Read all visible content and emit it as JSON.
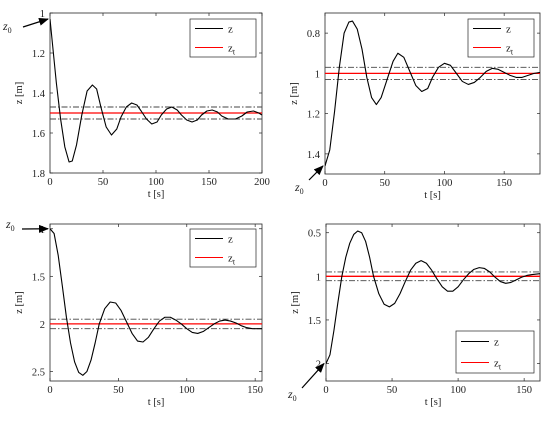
{
  "chart_data": [
    {
      "type": "line",
      "xlabel": "t [s]",
      "ylabel": "z [m]",
      "xlim": [
        0,
        200
      ],
      "ylim": [
        1.0,
        1.8
      ],
      "y_reversed": true,
      "xticks": [
        0,
        50,
        100,
        150,
        200
      ],
      "yticks": [
        1.0,
        1.2,
        1.4,
        1.6,
        1.8
      ],
      "ytick_labels": [
        "1",
        "1.2",
        "1.4",
        "1.6",
        "1.8"
      ],
      "legend": {
        "position": "top-right",
        "entries": [
          "z",
          "z_t"
        ]
      },
      "start_label": "z_0",
      "series": [
        {
          "name": "z",
          "color": "#000000",
          "x": [
            0,
            3,
            6,
            10,
            14,
            18,
            21,
            25,
            30,
            35,
            40,
            44,
            48,
            53,
            58,
            63,
            67,
            72,
            77,
            82,
            86,
            91,
            96,
            101,
            105,
            110,
            115,
            120,
            124,
            129,
            134,
            139,
            143,
            148,
            153,
            158,
            162,
            168,
            175,
            181,
            186,
            192,
            197,
            200
          ],
          "y": [
            1.03,
            1.19,
            1.35,
            1.53,
            1.67,
            1.745,
            1.74,
            1.66,
            1.51,
            1.39,
            1.36,
            1.38,
            1.47,
            1.57,
            1.61,
            1.58,
            1.52,
            1.47,
            1.45,
            1.46,
            1.49,
            1.53,
            1.555,
            1.545,
            1.51,
            1.48,
            1.47,
            1.485,
            1.51,
            1.535,
            1.545,
            1.535,
            1.51,
            1.49,
            1.485,
            1.495,
            1.515,
            1.53,
            1.53,
            1.515,
            1.495,
            1.49,
            1.5,
            1.51
          ]
        },
        {
          "name": "z_t",
          "color": "#ff0000",
          "x": [
            0,
            200
          ],
          "y": [
            1.5,
            1.5
          ]
        },
        {
          "name": "band_upper",
          "color": "#444444",
          "style": "dashdot",
          "x": [
            0,
            200
          ],
          "y": [
            1.47,
            1.47
          ]
        },
        {
          "name": "band_lower",
          "color": "#444444",
          "style": "dashdot",
          "x": [
            0,
            200
          ],
          "y": [
            1.53,
            1.53
          ]
        }
      ]
    },
    {
      "type": "line",
      "xlabel": "t [s]",
      "ylabel": "z [m]",
      "xlim": [
        0,
        180
      ],
      "ylim": [
        0.7,
        1.5
      ],
      "y_reversed": true,
      "xticks": [
        0,
        50,
        100,
        150
      ],
      "yticks": [
        0.8,
        1.0,
        1.2,
        1.4
      ],
      "ytick_labels": [
        "0.8",
        "1",
        "1.2",
        "1.4"
      ],
      "legend": {
        "position": "top-right",
        "entries": [
          "z",
          "z_t"
        ]
      },
      "start_label": "z_0",
      "series": [
        {
          "name": "z",
          "color": "#000000",
          "x": [
            0,
            4,
            8,
            12,
            16,
            20,
            23,
            27,
            31,
            35,
            39,
            43,
            47,
            52,
            57,
            61,
            66,
            71,
            76,
            81,
            86,
            90,
            95,
            100,
            105,
            110,
            115,
            120,
            125,
            130,
            135,
            140,
            145,
            150,
            155,
            160,
            165,
            170,
            175,
            180
          ],
          "y": [
            1.46,
            1.38,
            1.19,
            0.97,
            0.8,
            0.745,
            0.74,
            0.78,
            0.88,
            1.02,
            1.12,
            1.155,
            1.12,
            1.03,
            0.94,
            0.9,
            0.92,
            0.99,
            1.06,
            1.09,
            1.075,
            1.02,
            0.97,
            0.95,
            0.96,
            1.0,
            1.04,
            1.055,
            1.045,
            1.02,
            0.99,
            0.975,
            0.98,
            0.995,
            1.01,
            1.02,
            1.02,
            1.01,
            1.0,
            0.995
          ]
        },
        {
          "name": "z_t",
          "color": "#ff0000",
          "x": [
            0,
            180
          ],
          "y": [
            1.0,
            1.0
          ]
        },
        {
          "name": "band_upper",
          "color": "#444444",
          "style": "dashdot",
          "x": [
            0,
            180
          ],
          "y": [
            0.97,
            0.97
          ]
        },
        {
          "name": "band_lower",
          "color": "#444444",
          "style": "dashdot",
          "x": [
            0,
            180
          ],
          "y": [
            1.03,
            1.03
          ]
        }
      ]
    },
    {
      "type": "line",
      "xlabel": "t [s]",
      "ylabel": "z [m]",
      "xlim": [
        0,
        155
      ],
      "ylim": [
        0.95,
        2.6
      ],
      "y_reversed": true,
      "xticks": [
        0,
        50,
        100,
        150
      ],
      "yticks": [
        1.0,
        1.5,
        2.0,
        2.5
      ],
      "ytick_labels": [
        "1",
        "1.5",
        "2",
        "2.5"
      ],
      "legend": {
        "position": "top-right",
        "entries": [
          "z",
          "z_t"
        ]
      },
      "start_label": "z_0",
      "series": [
        {
          "name": "z",
          "color": "#000000",
          "x": [
            0,
            3,
            6,
            9,
            12,
            15,
            18,
            21,
            24,
            27,
            30,
            33,
            36,
            40,
            44,
            48,
            52,
            56,
            60,
            64,
            68,
            72,
            76,
            80,
            84,
            88,
            92,
            96,
            100,
            104,
            108,
            112,
            116,
            120,
            124,
            128,
            132,
            136,
            140,
            144,
            148,
            155
          ],
          "y": [
            1.0,
            1.05,
            1.28,
            1.6,
            1.93,
            2.2,
            2.4,
            2.51,
            2.54,
            2.5,
            2.38,
            2.2,
            2.0,
            1.84,
            1.77,
            1.78,
            1.86,
            1.98,
            2.1,
            2.18,
            2.19,
            2.14,
            2.05,
            1.97,
            1.93,
            1.93,
            1.96,
            2.0,
            2.05,
            2.09,
            2.1,
            2.08,
            2.04,
            2.0,
            1.97,
            1.96,
            1.97,
            1.99,
            2.02,
            2.04,
            2.05,
            2.05
          ]
        },
        {
          "name": "z_t",
          "color": "#ff0000",
          "x": [
            0,
            155
          ],
          "y": [
            2.0,
            2.0
          ]
        },
        {
          "name": "band_upper",
          "color": "#444444",
          "style": "dashdot",
          "x": [
            0,
            155
          ],
          "y": [
            1.95,
            1.95
          ]
        },
        {
          "name": "band_lower",
          "color": "#444444",
          "style": "dashdot",
          "x": [
            0,
            155
          ],
          "y": [
            2.05,
            2.05
          ]
        }
      ]
    },
    {
      "type": "line",
      "xlabel": "t [s]",
      "ylabel": "z [m]",
      "xlim": [
        0,
        162
      ],
      "ylim": [
        0.4,
        2.2
      ],
      "y_reversed": true,
      "xticks": [
        0,
        50,
        100,
        150
      ],
      "yticks": [
        0.5,
        1.0,
        1.5,
        2.0
      ],
      "ytick_labels": [
        "0.5",
        "1",
        "1.5",
        "2"
      ],
      "legend": {
        "position": "bottom-right",
        "entries": [
          "z",
          "z_t"
        ]
      },
      "start_label": "z_0",
      "series": [
        {
          "name": "z",
          "color": "#000000",
          "x": [
            0,
            3,
            6,
            9,
            12,
            15,
            18,
            21,
            24,
            27,
            30,
            33,
            36,
            40,
            44,
            48,
            52,
            56,
            60,
            64,
            68,
            72,
            76,
            80,
            84,
            88,
            92,
            96,
            100,
            104,
            108,
            112,
            116,
            120,
            124,
            128,
            132,
            136,
            140,
            144,
            148,
            152,
            156,
            162
          ],
          "y": [
            2.0,
            1.9,
            1.62,
            1.3,
            1.0,
            0.78,
            0.62,
            0.52,
            0.48,
            0.5,
            0.6,
            0.78,
            1.0,
            1.2,
            1.32,
            1.35,
            1.31,
            1.2,
            1.06,
            0.93,
            0.85,
            0.82,
            0.85,
            0.93,
            1.03,
            1.12,
            1.17,
            1.17,
            1.12,
            1.04,
            0.97,
            0.92,
            0.9,
            0.91,
            0.95,
            1.01,
            1.06,
            1.08,
            1.07,
            1.04,
            1.01,
            0.99,
            0.98,
            0.97
          ]
        },
        {
          "name": "z_t",
          "color": "#ff0000",
          "x": [
            0,
            162
          ],
          "y": [
            1.0,
            1.0
          ]
        },
        {
          "name": "band_upper",
          "color": "#444444",
          "style": "dashdot",
          "x": [
            0,
            162
          ],
          "y": [
            0.95,
            0.95
          ]
        },
        {
          "name": "band_lower",
          "color": "#444444",
          "style": "dashdot",
          "x": [
            0,
            162
          ],
          "y": [
            1.05,
            1.05
          ]
        }
      ]
    }
  ]
}
